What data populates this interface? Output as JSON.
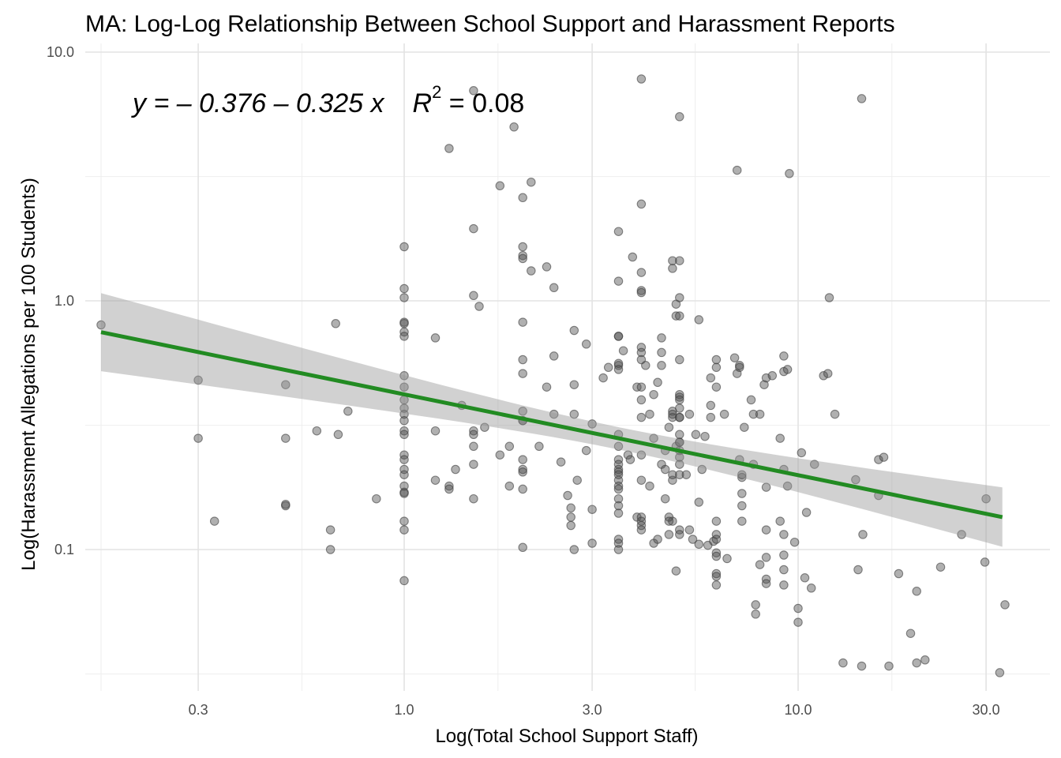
{
  "chart_data": {
    "type": "scatter",
    "title": "MA: Log-Log Relationship Between School Support and Harassment Reports",
    "xlabel": "Log(Total School Support Staff)",
    "ylabel": "Log(Harassment Allegations per 100 Students)",
    "x_scale": "log10",
    "y_scale": "log10",
    "xlim": [
      0.2,
      38
    ],
    "ylim": [
      0.03,
      10.0
    ],
    "x_ticks": [
      0.3,
      1.0,
      3.0,
      10.0,
      30.0
    ],
    "x_tick_labels": [
      "0.3",
      "1.0",
      "3.0",
      "10.0",
      "30.0"
    ],
    "y_ticks": [
      0.1,
      1.0,
      10.0
    ],
    "y_tick_labels": [
      "0.1",
      "1.0",
      "10.0"
    ],
    "grid": true,
    "annotation": {
      "text_parts": [
        "y = – 0.376 – 0.325 x",
        "R",
        "2",
        " = 0.08"
      ],
      "intercept": -0.376,
      "slope": -0.325,
      "r_squared": 0.08
    },
    "regression": {
      "color": "#228b22",
      "x_range": [
        0.17,
        33
      ],
      "ci_low_start": 0.49,
      "ci_high_start": 1.01,
      "ci_low_end": 0.101,
      "ci_high_end": 0.175
    },
    "points": [
      [
        0.17,
        0.8
      ],
      [
        0.3,
        0.48
      ],
      [
        0.3,
        0.28
      ],
      [
        0.33,
        0.13
      ],
      [
        0.5,
        0.46
      ],
      [
        0.5,
        0.28
      ],
      [
        0.5,
        0.15
      ],
      [
        0.5,
        0.152
      ],
      [
        0.6,
        0.3
      ],
      [
        0.67,
        0.81
      ],
      [
        0.68,
        0.29
      ],
      [
        0.72,
        0.36
      ],
      [
        0.65,
        0.12
      ],
      [
        0.65,
        0.1
      ],
      [
        0.85,
        0.16
      ],
      [
        1.0,
        1.65
      ],
      [
        1.0,
        1.12
      ],
      [
        1.0,
        1.03
      ],
      [
        1.0,
        0.82
      ],
      [
        1.0,
        0.81
      ],
      [
        1.0,
        0.75
      ],
      [
        1.0,
        0.72
      ],
      [
        1.0,
        0.5
      ],
      [
        1.0,
        0.45
      ],
      [
        1.0,
        0.4
      ],
      [
        1.0,
        0.37
      ],
      [
        1.0,
        0.35
      ],
      [
        1.0,
        0.33
      ],
      [
        1.0,
        0.3
      ],
      [
        1.0,
        0.29
      ],
      [
        1.0,
        0.24
      ],
      [
        1.0,
        0.23
      ],
      [
        1.0,
        0.21
      ],
      [
        1.0,
        0.2
      ],
      [
        1.0,
        0.18
      ],
      [
        1.0,
        0.17
      ],
      [
        1.0,
        0.168
      ],
      [
        1.0,
        0.13
      ],
      [
        1.0,
        0.12
      ],
      [
        1.0,
        0.075
      ],
      [
        1.2,
        0.71
      ],
      [
        1.2,
        0.3
      ],
      [
        1.2,
        0.19
      ],
      [
        1.3,
        0.18
      ],
      [
        1.3,
        0.175
      ],
      [
        1.35,
        0.21
      ],
      [
        1.4,
        0.38
      ],
      [
        1.3,
        4.1
      ],
      [
        1.5,
        7.0
      ],
      [
        1.5,
        1.95
      ],
      [
        1.5,
        1.05
      ],
      [
        1.5,
        0.3
      ],
      [
        1.5,
        0.29
      ],
      [
        1.5,
        0.26
      ],
      [
        1.5,
        0.22
      ],
      [
        1.5,
        0.16
      ],
      [
        1.55,
        0.95
      ],
      [
        1.6,
        0.31
      ],
      [
        1.75,
        2.9
      ],
      [
        1.75,
        0.24
      ],
      [
        1.85,
        0.26
      ],
      [
        1.85,
        0.18
      ],
      [
        1.9,
        5.0
      ],
      [
        2.0,
        2.6
      ],
      [
        2.0,
        1.65
      ],
      [
        2.0,
        1.52
      ],
      [
        2.0,
        1.48
      ],
      [
        2.0,
        0.82
      ],
      [
        2.0,
        0.58
      ],
      [
        2.0,
        0.51
      ],
      [
        2.0,
        0.36
      ],
      [
        2.0,
        0.33
      ],
      [
        2.0,
        0.33
      ],
      [
        2.0,
        0.23
      ],
      [
        2.0,
        0.21
      ],
      [
        2.0,
        0.205
      ],
      [
        2.0,
        0.175
      ],
      [
        2.0,
        0.102
      ],
      [
        2.1,
        3.0
      ],
      [
        2.1,
        1.32
      ],
      [
        2.2,
        0.26
      ],
      [
        2.3,
        1.37
      ],
      [
        2.3,
        0.45
      ],
      [
        2.4,
        1.13
      ],
      [
        2.4,
        0.6
      ],
      [
        2.4,
        0.35
      ],
      [
        2.5,
        0.225
      ],
      [
        2.6,
        0.165
      ],
      [
        2.65,
        0.147
      ],
      [
        2.65,
        0.135
      ],
      [
        2.65,
        0.125
      ],
      [
        2.7,
        0.76
      ],
      [
        2.7,
        0.46
      ],
      [
        2.7,
        0.35
      ],
      [
        2.75,
        0.19
      ],
      [
        2.7,
        0.1
      ],
      [
        2.9,
        0.67
      ],
      [
        2.9,
        0.25
      ],
      [
        3.0,
        0.32
      ],
      [
        3.0,
        0.145
      ],
      [
        3.0,
        0.106
      ],
      [
        3.2,
        0.49
      ],
      [
        3.3,
        0.54
      ],
      [
        3.5,
        1.2
      ],
      [
        3.5,
        1.9
      ],
      [
        3.5,
        0.72
      ],
      [
        3.5,
        0.72
      ],
      [
        3.5,
        0.55
      ],
      [
        3.5,
        0.56
      ],
      [
        3.5,
        0.53
      ],
      [
        3.5,
        0.29
      ],
      [
        3.5,
        0.26
      ],
      [
        3.5,
        0.23
      ],
      [
        3.5,
        0.22
      ],
      [
        3.5,
        0.21
      ],
      [
        3.5,
        0.205
      ],
      [
        3.5,
        0.19
      ],
      [
        3.5,
        0.2
      ],
      [
        3.5,
        0.18
      ],
      [
        3.5,
        0.175
      ],
      [
        3.5,
        0.16
      ],
      [
        3.5,
        0.15
      ],
      [
        3.5,
        0.14
      ],
      [
        3.5,
        0.11
      ],
      [
        3.5,
        0.106
      ],
      [
        3.5,
        0.1
      ],
      [
        3.6,
        0.63
      ],
      [
        3.7,
        0.24
      ],
      [
        3.75,
        0.23
      ],
      [
        3.8,
        1.5
      ],
      [
        3.9,
        0.45
      ],
      [
        3.9,
        0.135
      ],
      [
        4.0,
        0.45
      ],
      [
        4.1,
        0.55
      ],
      [
        4.2,
        0.18
      ],
      [
        4.3,
        0.106
      ],
      [
        4.3,
        0.28
      ],
      [
        4.4,
        0.47
      ],
      [
        4.4,
        0.11
      ],
      [
        4.5,
        0.71
      ],
      [
        4.6,
        0.25
      ],
      [
        4.7,
        0.31
      ],
      [
        4.8,
        1.45
      ],
      [
        4.8,
        1.35
      ],
      [
        4.8,
        0.36
      ],
      [
        4.8,
        0.34
      ],
      [
        4.8,
        0.19
      ],
      [
        4.8,
        0.13
      ],
      [
        4.9,
        0.26
      ],
      [
        4.9,
        0.082
      ],
      [
        5.0,
        0.34
      ],
      [
        4.9,
        0.87
      ],
      [
        5.0,
        0.27
      ],
      [
        5.0,
        0.34
      ],
      [
        5.0,
        0.87
      ],
      [
        5.0,
        0.12
      ],
      [
        4.0,
        7.8
      ],
      [
        4.0,
        2.45
      ],
      [
        4.0,
        1.3
      ],
      [
        4.0,
        1.1
      ],
      [
        4.0,
        1.08
      ],
      [
        4.0,
        0.65
      ],
      [
        4.0,
        0.62
      ],
      [
        4.0,
        0.58
      ],
      [
        4.0,
        0.4
      ],
      [
        4.0,
        0.34
      ],
      [
        4.0,
        0.24
      ],
      [
        4.0,
        0.19
      ],
      [
        4.0,
        0.135
      ],
      [
        4.0,
        0.13
      ],
      [
        4.0,
        0.125
      ],
      [
        4.0,
        0.12
      ],
      [
        4.2,
        0.35
      ],
      [
        4.3,
        0.42
      ],
      [
        4.5,
        0.62
      ],
      [
        4.5,
        0.55
      ],
      [
        4.5,
        0.22
      ],
      [
        4.6,
        0.21
      ],
      [
        4.6,
        0.16
      ],
      [
        4.7,
        0.135
      ],
      [
        4.7,
        0.13
      ],
      [
        4.7,
        0.115
      ],
      [
        4.8,
        0.2
      ],
      [
        4.8,
        0.35
      ],
      [
        4.9,
        0.97
      ],
      [
        5.0,
        5.5
      ],
      [
        5.0,
        1.45
      ],
      [
        5.0,
        1.03
      ],
      [
        5.0,
        0.58
      ],
      [
        5.0,
        0.42
      ],
      [
        5.0,
        0.41
      ],
      [
        5.0,
        0.4
      ],
      [
        5.0,
        0.37
      ],
      [
        5.0,
        0.29
      ],
      [
        5.0,
        0.27
      ],
      [
        5.0,
        0.25
      ],
      [
        5.0,
        0.235
      ],
      [
        5.0,
        0.22
      ],
      [
        5.0,
        0.2
      ],
      [
        5.0,
        0.115
      ],
      [
        5.2,
        0.2
      ],
      [
        5.3,
        0.35
      ],
      [
        5.3,
        0.12
      ],
      [
        5.4,
        0.11
      ],
      [
        5.5,
        0.29
      ],
      [
        5.6,
        0.84
      ],
      [
        5.6,
        0.105
      ],
      [
        5.6,
        0.155
      ],
      [
        5.7,
        0.21
      ],
      [
        5.8,
        0.285
      ],
      [
        5.9,
        0.104
      ],
      [
        6.0,
        0.49
      ],
      [
        6.0,
        0.38
      ],
      [
        6.0,
        0.34
      ],
      [
        6.1,
        0.108
      ],
      [
        6.2,
        0.45
      ],
      [
        6.2,
        0.54
      ],
      [
        6.2,
        0.58
      ],
      [
        6.2,
        0.13
      ],
      [
        6.2,
        0.115
      ],
      [
        6.2,
        0.11
      ],
      [
        6.2,
        0.097
      ],
      [
        6.2,
        0.094
      ],
      [
        6.2,
        0.08
      ],
      [
        6.2,
        0.078
      ],
      [
        6.2,
        0.072
      ],
      [
        6.5,
        0.35
      ],
      [
        6.6,
        0.092
      ],
      [
        6.9,
        0.59
      ],
      [
        7.0,
        3.35
      ],
      [
        7.0,
        0.51
      ],
      [
        7.1,
        0.55
      ],
      [
        7.1,
        0.54
      ],
      [
        7.1,
        0.23
      ],
      [
        7.2,
        0.2
      ],
      [
        7.2,
        0.195
      ],
      [
        7.2,
        0.168
      ],
      [
        7.2,
        0.15
      ],
      [
        7.2,
        0.13
      ],
      [
        7.3,
        0.31
      ],
      [
        7.6,
        0.4
      ],
      [
        7.7,
        0.35
      ],
      [
        7.7,
        0.22
      ],
      [
        7.8,
        0.06
      ],
      [
        7.8,
        0.055
      ],
      [
        8.0,
        0.087
      ],
      [
        8.0,
        0.35
      ],
      [
        8.2,
        0.46
      ],
      [
        8.3,
        0.49
      ],
      [
        8.3,
        0.178
      ],
      [
        8.3,
        0.12
      ],
      [
        8.3,
        0.093
      ],
      [
        8.3,
        0.076
      ],
      [
        8.3,
        0.073
      ],
      [
        8.6,
        0.5
      ],
      [
        9.0,
        0.28
      ],
      [
        9.0,
        0.13
      ],
      [
        9.2,
        0.6
      ],
      [
        9.2,
        0.52
      ],
      [
        9.2,
        0.21
      ],
      [
        9.2,
        0.095
      ],
      [
        9.2,
        0.115
      ],
      [
        9.2,
        0.072
      ],
      [
        9.2,
        0.083
      ],
      [
        9.4,
        0.53
      ],
      [
        9.4,
        0.18
      ],
      [
        9.5,
        3.25
      ],
      [
        9.8,
        0.107
      ],
      [
        10.0,
        0.058
      ],
      [
        10.0,
        0.051
      ],
      [
        10.2,
        0.245
      ],
      [
        10.4,
        0.077
      ],
      [
        10.5,
        0.141
      ],
      [
        10.8,
        0.07
      ],
      [
        11.0,
        0.22
      ],
      [
        11.6,
        0.5
      ],
      [
        11.9,
        0.51
      ],
      [
        12.0,
        1.03
      ],
      [
        12.4,
        0.35
      ],
      [
        13.0,
        0.035
      ],
      [
        14.0,
        0.191
      ],
      [
        14.2,
        0.083
      ],
      [
        14.5,
        6.5
      ],
      [
        14.6,
        0.115
      ],
      [
        14.5,
        0.034
      ],
      [
        16.0,
        0.23
      ],
      [
        16.0,
        0.165
      ],
      [
        16.5,
        0.235
      ],
      [
        17.0,
        0.034
      ],
      [
        18.0,
        0.08
      ],
      [
        19.3,
        0.046
      ],
      [
        20.0,
        0.068
      ],
      [
        20.0,
        0.035
      ],
      [
        21.0,
        0.036
      ],
      [
        23.0,
        0.085
      ],
      [
        26.0,
        0.115
      ],
      [
        29.8,
        0.089
      ],
      [
        30.0,
        0.16
      ],
      [
        32.5,
        0.032
      ],
      [
        33.5,
        0.06
      ]
    ]
  }
}
